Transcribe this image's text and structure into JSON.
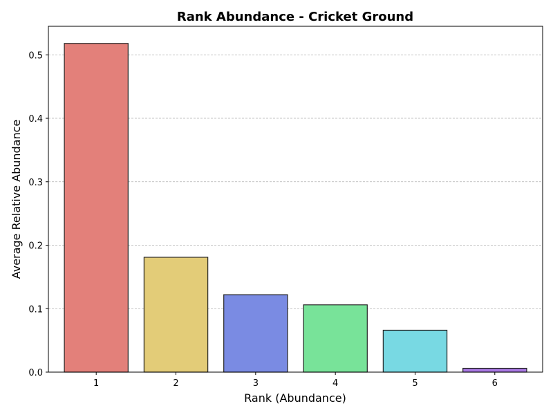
{
  "chart_data": {
    "type": "bar",
    "title": "Rank Abundance - Cricket Ground",
    "xlabel": "Rank (Abundance)",
    "ylabel": "Average Relative Abundance",
    "categories": [
      "1",
      "2",
      "3",
      "4",
      "5",
      "6"
    ],
    "values": [
      0.518,
      0.181,
      0.122,
      0.106,
      0.066,
      0.006
    ],
    "colors": [
      "#e3807a",
      "#e3cc78",
      "#7a8be3",
      "#78e399",
      "#78d9e3",
      "#a978e3"
    ],
    "ylim": [
      0,
      0.545
    ],
    "yticks": [
      "0.0",
      "0.1",
      "0.2",
      "0.3",
      "0.4",
      "0.5"
    ],
    "ytick_values": [
      0,
      0.1,
      0.2,
      0.3,
      0.4,
      0.5
    ],
    "grid": "y-dashed",
    "legend": "none"
  }
}
